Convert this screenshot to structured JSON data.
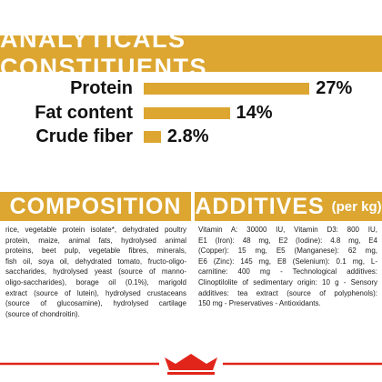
{
  "chart_data": {
    "type": "bar",
    "title": "ANALYTICALS CONSTITUENTS",
    "categories": [
      "Protein",
      "Fat content",
      "Crude fiber"
    ],
    "values": [
      27,
      14,
      2.8
    ],
    "value_labels": [
      "27%",
      "14%",
      "2.8%"
    ],
    "color": "#dca631"
  },
  "composition": {
    "title": "COMPOSITION",
    "lines": [
      "rice, vegetable protein isolate*, dehydrated poultry",
      "protein, maize, animal fats, hydrolysed animal",
      "proteins, beet pulp, vegetable fibres, minerals,",
      "fish oil, soya oil, dehydrated tomato, fructo-oligo-",
      "saccharides, hydrolysed yeast (source of manno-",
      "oligo-saccharides), borage oil (0.1%), marigold",
      "extract (source of lutein), hydrolysed crustaceans",
      "(source of glucosamine), hydrolysed cartilage",
      "(source of chondroitin)."
    ]
  },
  "additives": {
    "title": "ADDITIVES",
    "unit": "(per kg)",
    "lines": [
      "Vitamin A: 30000 IU, Vitamin D3: 800 IU,",
      "E1 (Iron): 48 mg, E2 (Iodine): 4.8 mg, E4",
      "(Copper): 15 mg, E5 (Manganese): 62 mg,",
      "E6 (Zinc): 145 mg, E8 (Selenium): 0.1 mg, L-",
      "carnitine: 400 mg - Technological additives:",
      "Clinoptilolite of sedimentary origin: 10 g - Sensory",
      "additives: tea extract (source of polyphenols):",
      "150 mg - Preservatives - Antioxidants."
    ]
  }
}
